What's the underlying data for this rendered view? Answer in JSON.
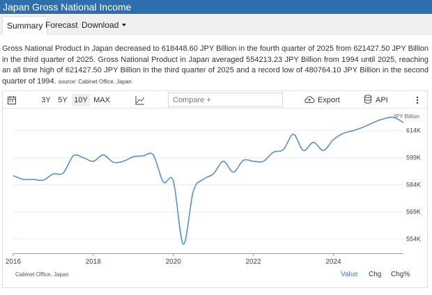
{
  "page_title": "Japan Gross National Income",
  "tabs": [
    {
      "label": "Summary",
      "active": true
    },
    {
      "label": "Forecast"
    },
    {
      "label": "Download"
    }
  ],
  "description": {
    "text": "Gross National Product in Japan decreased to 618448.60 JPY Billion in the fourth quarter of 2025 from 621427.50 JPY Billion in the third quarter of 2025. Gross National Product in Japan averaged 554213.23 JPY Billion from 1994 until 2025, reaching an all time high of 621427.50 JPY Billion in the third quarter of 2025 and a record low of 480764.10 JPY Billion in the second quarter of 1994.",
    "source": "source: Cabinet Office, Japan"
  },
  "toolbar": {
    "ranges": [
      "3Y",
      "5Y",
      "10Y",
      "MAX"
    ],
    "active_range": "10Y",
    "compare_placeholder": "Compare +",
    "export_label": "Export",
    "api_label": "API",
    "icons": [
      "calendar-icon",
      "line-chart-icon",
      "cloud-upload-icon",
      "database-icon",
      "more-vertical-icon"
    ]
  },
  "chart_footer": {
    "source_label": "Cabinet Office, Japan",
    "value_label": "Value",
    "chg_label": "Chg",
    "chgpct_label": "Chg%"
  },
  "colors": {
    "title_bar": "#2f6fae",
    "line": "#5b8fc7",
    "active_link": "#3a7bbf"
  },
  "chart_data": {
    "type": "line",
    "unit_label": "JPY Billion",
    "x_tick_labels": [
      "2016",
      "2018",
      "2020",
      "2022",
      "2024"
    ],
    "x_ticks": [
      2016,
      2018,
      2020,
      2022,
      2024
    ],
    "y_tick_labels": [
      "554K",
      "569K",
      "584K",
      "599K",
      "614K"
    ],
    "y_ticks": [
      554,
      569,
      584,
      599,
      614
    ],
    "xlim": [
      2016,
      2025.75
    ],
    "ylim": [
      546,
      622
    ],
    "grid": "horizontal",
    "series": [
      {
        "x": [
          2016.0,
          2016.25,
          2016.5,
          2016.75,
          2017.0,
          2017.25,
          2017.5,
          2017.75,
          2018.0,
          2018.25,
          2018.5,
          2018.75,
          2019.0,
          2019.25,
          2019.5,
          2019.75,
          2020.0,
          2020.25,
          2020.5,
          2020.75,
          2021.0,
          2021.25,
          2021.5,
          2021.75,
          2022.0,
          2022.25,
          2022.5,
          2022.75,
          2023.0,
          2023.25,
          2023.5,
          2023.75,
          2024.0,
          2024.25,
          2024.5,
          2024.75,
          2025.0,
          2025.25,
          2025.5,
          2025.75
        ],
        "values": [
          589,
          587,
          587,
          586.5,
          590,
          590.5,
          600,
          599,
          597,
          600.5,
          596.5,
          597,
          599.5,
          600,
          600.5,
          585.5,
          586,
          551,
          580.5,
          587,
          590,
          597,
          591,
          597.5,
          597,
          597,
          602,
          603.5,
          612,
          603,
          607.5,
          603,
          609,
          612.5,
          614,
          616,
          618.5,
          620.5,
          621.4,
          618.4
        ]
      }
    ]
  }
}
